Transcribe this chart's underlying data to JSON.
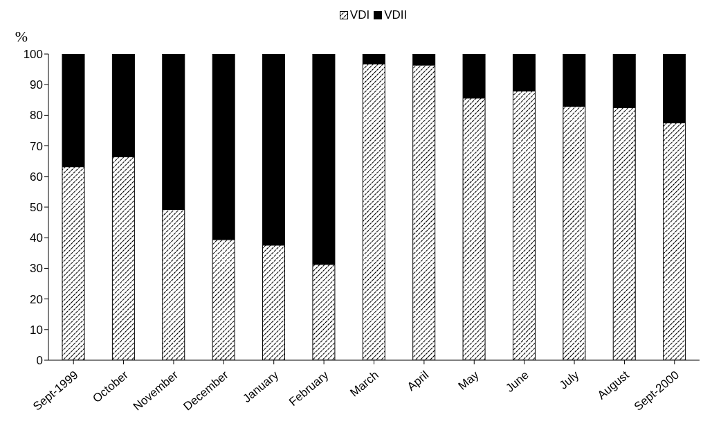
{
  "chart_data": {
    "type": "bar",
    "stacked": true,
    "ylabel": "%",
    "categories": [
      "Sept-1999",
      "October",
      "November",
      "December",
      "January",
      "February",
      "March",
      "April",
      "May",
      "June",
      "July",
      "August",
      "Sept-2000"
    ],
    "series": [
      {
        "name": "VDI",
        "color": "#000000",
        "values": [
          63.2,
          66.4,
          49.2,
          39.4,
          37.6,
          31.3,
          96.8,
          96.4,
          85.6,
          87.9,
          82.9,
          82.5,
          77.5
        ]
      },
      {
        "name": "VDII",
        "color": "#000000",
        "values": [
          36.8,
          33.6,
          50.8,
          60.6,
          62.4,
          68.7,
          3.2,
          3.6,
          14.4,
          12.1,
          17.1,
          17.5,
          22.5
        ]
      }
    ],
    "ylim": [
      0,
      100
    ],
    "yticks": [
      0,
      10,
      20,
      30,
      40,
      50,
      60,
      70,
      80,
      90,
      100
    ],
    "legend": "top",
    "grid": false
  }
}
